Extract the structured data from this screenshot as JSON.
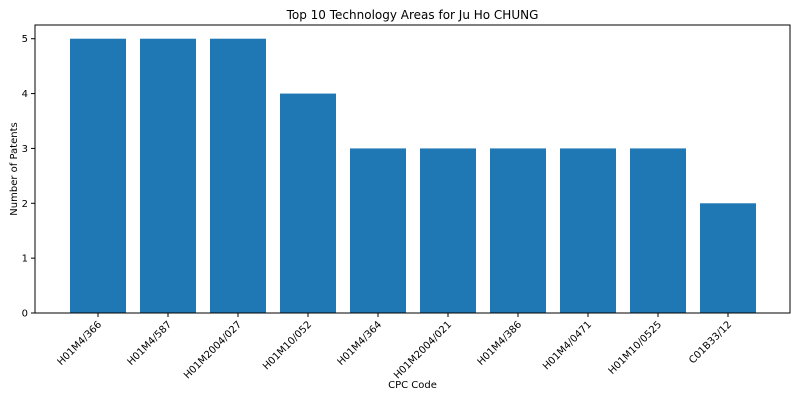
{
  "chart_data": {
    "type": "bar",
    "title": "Top 10 Technology Areas for Ju Ho CHUNG",
    "xlabel": "CPC Code",
    "ylabel": "Number of Patents",
    "categories": [
      "H01M4/366",
      "H01M4/587",
      "H01M2004/027",
      "H01M10/052",
      "H01M4/364",
      "H01M2004/021",
      "H01M4/386",
      "H01M4/0471",
      "H01M10/0525",
      "C01B33/12"
    ],
    "values": [
      5,
      5,
      5,
      4,
      3,
      3,
      3,
      3,
      3,
      2
    ],
    "ylim": [
      0,
      5.25
    ],
    "yticks": [
      0,
      1,
      2,
      3,
      4,
      5
    ],
    "bar_color": "#1f77b4",
    "grid": false,
    "legend": "none"
  }
}
